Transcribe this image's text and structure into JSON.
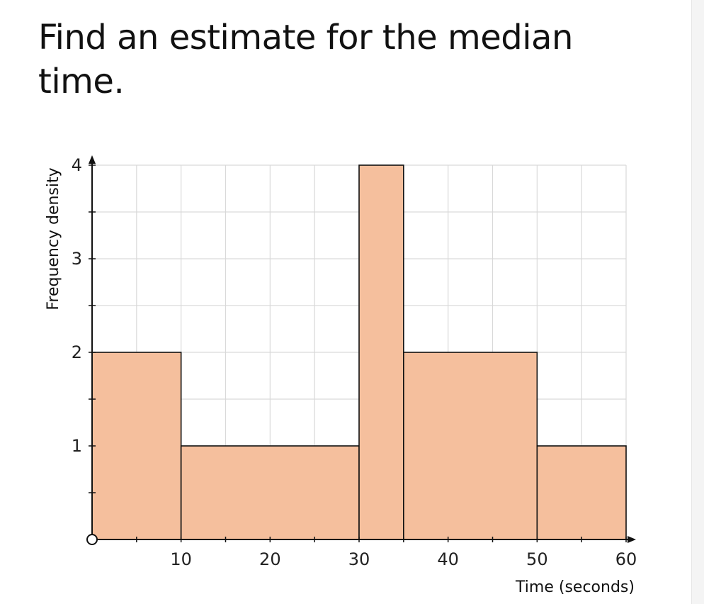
{
  "question": {
    "text": "Find an estimate for the median time."
  },
  "chart_data": {
    "type": "histogram",
    "xlabel": "Time (seconds)",
    "ylabel": "Frequency density",
    "xlim": [
      0,
      60
    ],
    "ylim": [
      0,
      4
    ],
    "x_ticks": [
      10,
      20,
      30,
      40,
      50,
      60
    ],
    "y_ticks": [
      1,
      2,
      3,
      4
    ],
    "x_minor_step": 5,
    "y_minor_step": 0.5,
    "grid": true,
    "bar_color": "#f5bf9d",
    "bar_edge_color": "#111111",
    "bins": [
      {
        "x0": 0,
        "x1": 10,
        "value": 2
      },
      {
        "x0": 10,
        "x1": 30,
        "value": 1
      },
      {
        "x0": 30,
        "x1": 35,
        "value": 4
      },
      {
        "x0": 35,
        "x1": 50,
        "value": 2
      },
      {
        "x0": 50,
        "x1": 60,
        "value": 1
      }
    ]
  }
}
